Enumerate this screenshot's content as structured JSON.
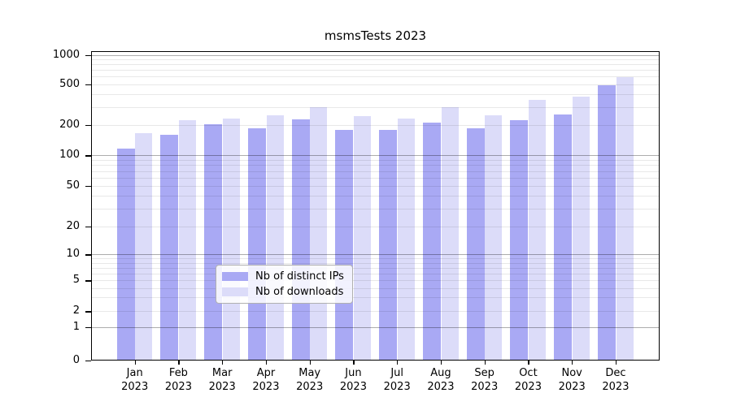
{
  "chart_data": {
    "type": "bar",
    "title": "msmsTests 2023",
    "x_year": "2023",
    "categories": [
      "Jan",
      "Feb",
      "Mar",
      "Apr",
      "May",
      "Jun",
      "Jul",
      "Aug",
      "Sep",
      "Oct",
      "Nov",
      "Dec"
    ],
    "series": [
      {
        "name": "Nb of distinct IPs",
        "color": "#a9a9f4",
        "values": [
          117,
          158,
          201,
          186,
          227,
          178,
          178,
          210,
          184,
          220,
          252,
          492
        ]
      },
      {
        "name": "Nb of downloads",
        "color": "#dcdcf9",
        "values": [
          166,
          220,
          229,
          250,
          300,
          245,
          230,
          295,
          248,
          353,
          377,
          597
        ]
      }
    ],
    "y_ticks": [
      0,
      1,
      2,
      5,
      10,
      20,
      50,
      100,
      200,
      500,
      1000
    ],
    "ylim": [
      0,
      1000
    ],
    "y_scale": "logarithmic with 0 baseline",
    "xlabel": "",
    "ylabel": "",
    "grid": true,
    "legend_position": "bottom-center",
    "colors": {
      "grid_major": "#adadad",
      "grid_minor": "#e8e8e8",
      "axis": "#000000",
      "legend_border": "#b0b0b0"
    }
  }
}
